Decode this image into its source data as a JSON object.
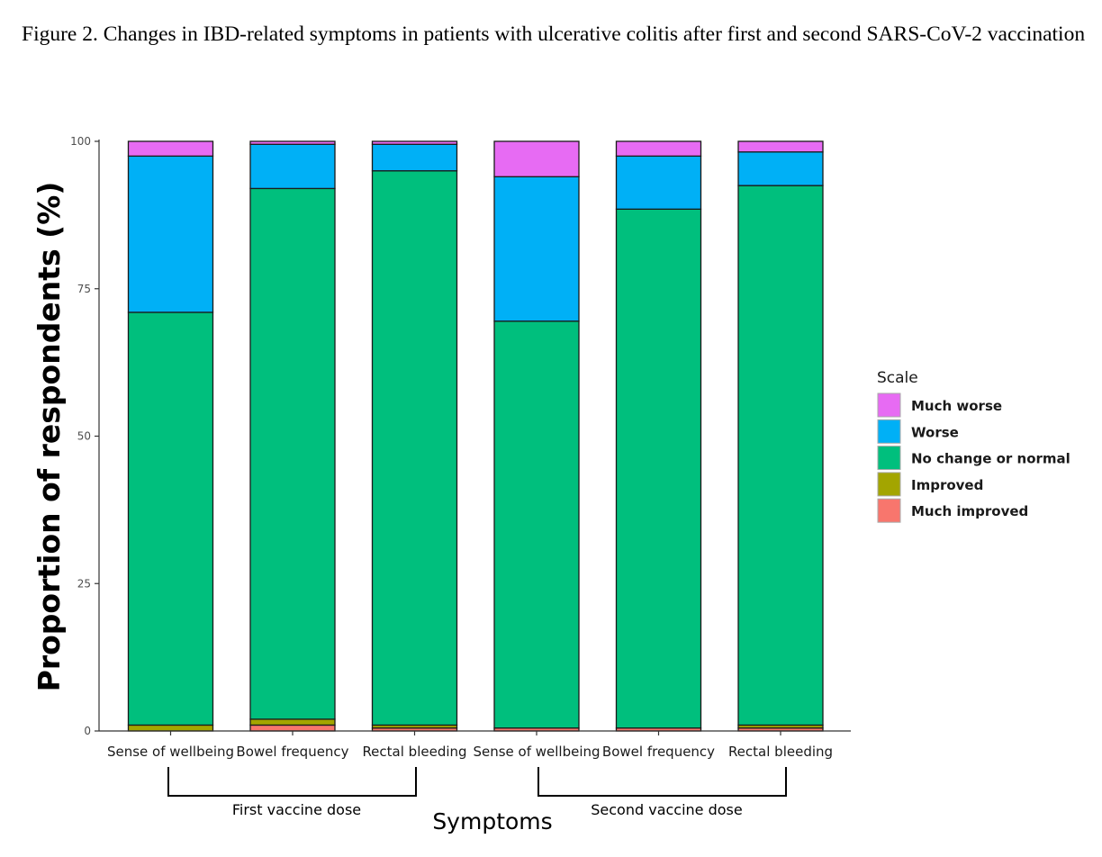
{
  "caption": "Figure 2. Changes in IBD-related symptoms in patients with ulcerative colitis after first and second SARS-CoV-2 vaccination",
  "chart_data": {
    "type": "bar",
    "stacked": true,
    "categories": [
      "Sense of wellbeing",
      "Bowel frequency",
      "Rectal bleeding",
      "Sense of wellbeing",
      "Bowel frequency",
      "Rectal bleeding"
    ],
    "groups": [
      {
        "label": "First vaccine dose",
        "categories": [
          0,
          1,
          2
        ]
      },
      {
        "label": "Second vaccine dose",
        "categories": [
          3,
          4,
          5
        ]
      }
    ],
    "xlabel": "Symptoms",
    "ylabel": "Proportion of respondents (%)",
    "ylim": [
      0,
      100
    ],
    "yticks": [
      0,
      25,
      50,
      75,
      100
    ],
    "legend_title": "Scale",
    "legend_position": "right",
    "grid": false,
    "series": [
      {
        "name": "Much improved",
        "color": "#F8766D",
        "values": [
          0,
          1,
          0.5,
          0.5,
          0.5,
          0.5
        ]
      },
      {
        "name": "Improved",
        "color": "#A3A500",
        "values": [
          1,
          1,
          0.5,
          0,
          0,
          0.5
        ]
      },
      {
        "name": "No change or normal",
        "color": "#00BF7D",
        "values": [
          70,
          90,
          94,
          69,
          88,
          91.5
        ]
      },
      {
        "name": "Worse",
        "color": "#00B0F6",
        "values": [
          26.5,
          7.5,
          4.5,
          24.5,
          9,
          5.7
        ]
      },
      {
        "name": "Much worse",
        "color": "#E76BF3",
        "values": [
          2.5,
          0.5,
          0.5,
          6,
          2.5,
          1.8
        ]
      }
    ]
  }
}
